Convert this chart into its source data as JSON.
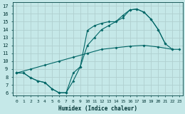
{
  "xlabel": "Humidex (Indice chaleur)",
  "bg_color": "#c5e8e8",
  "grid_color": "#b0d0d0",
  "line_color": "#006666",
  "xlim": [
    -0.5,
    23.5
  ],
  "ylim": [
    5.7,
    17.5
  ],
  "xticks": [
    0,
    1,
    2,
    3,
    4,
    5,
    6,
    7,
    8,
    9,
    10,
    11,
    12,
    13,
    14,
    15,
    16,
    17,
    18,
    19,
    20,
    21,
    22,
    23
  ],
  "yticks": [
    6,
    7,
    8,
    9,
    10,
    11,
    12,
    13,
    14,
    15,
    16,
    17
  ],
  "line1_xy": [
    [
      0,
      8.5
    ],
    [
      1,
      8.5
    ],
    [
      2,
      7.9
    ],
    [
      3,
      7.5
    ],
    [
      4,
      7.3
    ],
    [
      5,
      6.5
    ],
    [
      6,
      6.0
    ],
    [
      7,
      6.0
    ],
    [
      8,
      7.5
    ],
    [
      9,
      9.3
    ],
    [
      10,
      13.9
    ],
    [
      11,
      14.5
    ],
    [
      12,
      14.8
    ],
    [
      13,
      15.0
    ],
    [
      14,
      15.0
    ],
    [
      15,
      15.8
    ],
    [
      16,
      16.5
    ],
    [
      17,
      16.6
    ],
    [
      18,
      16.2
    ],
    [
      19,
      15.3
    ],
    [
      20,
      14.0
    ],
    [
      21,
      12.2
    ]
  ],
  "line2_xy": [
    [
      0,
      8.5
    ],
    [
      1,
      8.5
    ],
    [
      2,
      7.9
    ],
    [
      3,
      7.5
    ],
    [
      4,
      7.3
    ],
    [
      5,
      6.5
    ],
    [
      6,
      6.0
    ],
    [
      7,
      6.0
    ],
    [
      8,
      8.5
    ],
    [
      9,
      9.3
    ],
    [
      10,
      12.0
    ],
    [
      11,
      13.0
    ],
    [
      12,
      14.0
    ],
    [
      13,
      14.5
    ],
    [
      14,
      15.0
    ],
    [
      15,
      15.5
    ],
    [
      16,
      16.5
    ],
    [
      17,
      16.6
    ],
    [
      18,
      16.2
    ],
    [
      19,
      15.3
    ],
    [
      20,
      14.0
    ],
    [
      21,
      12.2
    ],
    [
      22,
      11.5
    ]
  ],
  "line3_xy": [
    [
      0,
      8.5
    ],
    [
      2,
      9.0
    ],
    [
      4,
      9.5
    ],
    [
      6,
      10.0
    ],
    [
      8,
      10.5
    ],
    [
      10,
      11.0
    ],
    [
      12,
      11.5
    ],
    [
      14,
      11.7
    ],
    [
      16,
      11.9
    ],
    [
      18,
      12.0
    ],
    [
      20,
      11.8
    ],
    [
      22,
      11.5
    ],
    [
      23,
      11.5
    ]
  ]
}
